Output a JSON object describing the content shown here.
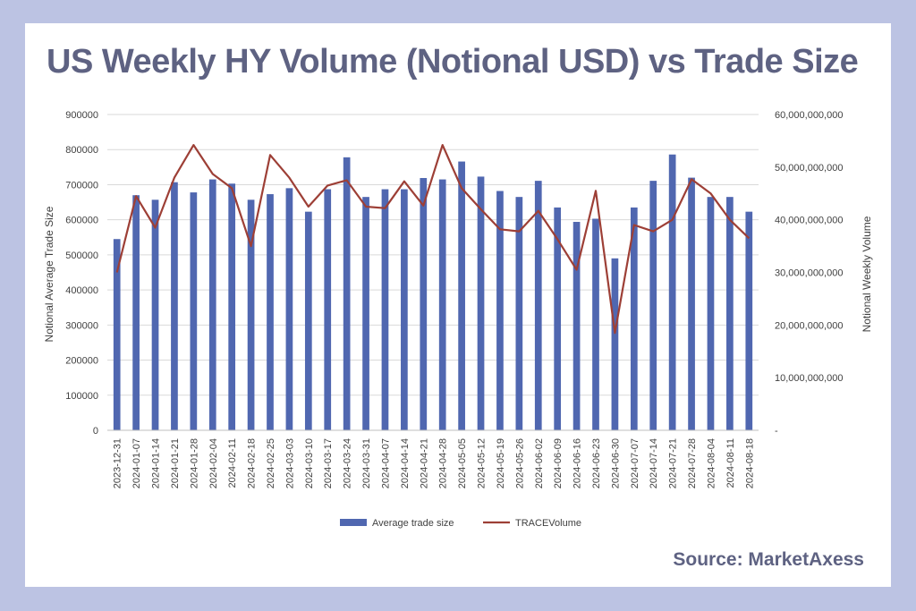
{
  "title": "US Weekly HY Volume (Notional USD) vs Trade Size",
  "source": "Source: MarketAxess",
  "colors": {
    "bar": "#5067b0",
    "line": "#9d3f36",
    "title": "#5e6282",
    "background": "#bcc3e3"
  },
  "chart_data": {
    "type": "bar",
    "title": "US Weekly HY Volume (Notional USD) vs Trade Size",
    "ylabel": "Notional Average Trade Size",
    "y2label": "Notional  Weekly Volume",
    "ylim": [
      0,
      900000
    ],
    "y2lim": [
      0,
      60000000000
    ],
    "yticks": [
      "900000",
      "800000",
      "700000",
      "600000",
      "500000",
      "400000",
      "300000",
      "200000",
      "100000",
      "0"
    ],
    "y2ticks": [
      "60,000,000,000",
      "50,000,000,000",
      "40,000,000,000",
      "30,000,000,000",
      "20,000,000,000",
      "10,000,000,000",
      "-"
    ],
    "grid": true,
    "legend_position": "bottom",
    "categories": [
      "2023-12-31",
      "2024-01-07",
      "2024-01-14",
      "2024-01-21",
      "2024-01-28",
      "2024-02-04",
      "2024-02-11",
      "2024-02-18",
      "2024-02-25",
      "2024-03-03",
      "2024-03-10",
      "2024-03-17",
      "2024-03-24",
      "2024-03-31",
      "2024-04-07",
      "2024-04-14",
      "2024-04-21",
      "2024-04-28",
      "2024-05-05",
      "2024-05-12",
      "2024-05-19",
      "2024-05-26",
      "2024-06-02",
      "2024-06-09",
      "2024-06-16",
      "2024-06-23",
      "2024-06-30",
      "2024-07-07",
      "2024-07-14",
      "2024-07-21",
      "2024-07-28",
      "2024-08-04",
      "2024-08-11",
      "2024-08-18"
    ],
    "series": [
      {
        "name": "Average trade size",
        "type": "bar",
        "axis": "left",
        "values": [
          545000,
          670000,
          657000,
          707000,
          678000,
          715000,
          703000,
          657000,
          673000,
          690000,
          623000,
          687000,
          778000,
          665000,
          687000,
          687000,
          719000,
          715000,
          766000,
          723000,
          682000,
          665000,
          711000,
          635000,
          594000,
          603000,
          490000,
          635000,
          711000,
          786000,
          720000,
          665000,
          665000,
          623000
        ]
      },
      {
        "name": "TRACEVolume",
        "type": "line",
        "axis": "right",
        "values": [
          30000000000,
          44500000000,
          38500000000,
          48000000000,
          54200000000,
          48700000000,
          46000000000,
          35000000000,
          52300000000,
          48000000000,
          42500000000,
          46500000000,
          47500000000,
          42500000000,
          42200000000,
          47300000000,
          42700000000,
          54200000000,
          46000000000,
          42000000000,
          38200000000,
          37800000000,
          41700000000,
          36300000000,
          30500000000,
          45500000000,
          18500000000,
          39000000000,
          37800000000,
          40000000000,
          47700000000,
          45000000000,
          40000000000,
          36500000000
        ]
      }
    ]
  }
}
